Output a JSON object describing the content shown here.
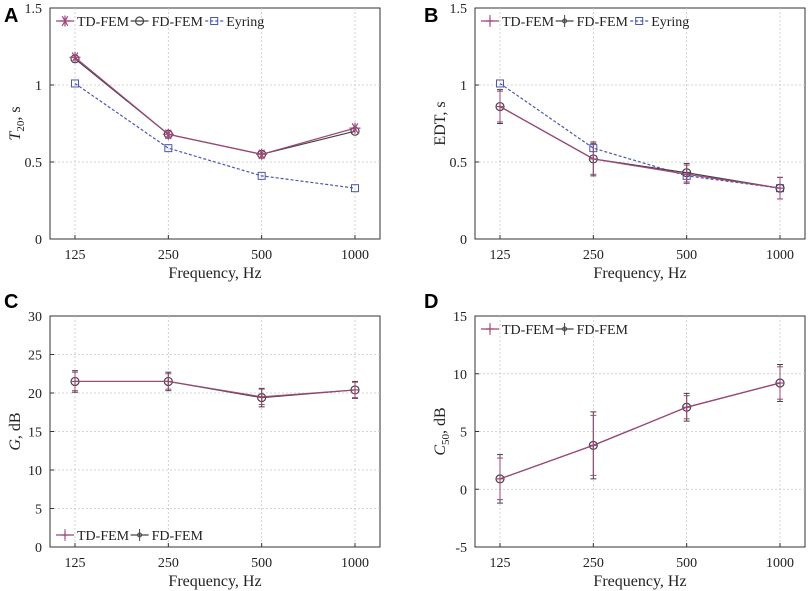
{
  "colors": {
    "td": "#a0457a",
    "fd": "#444444",
    "eyring": "#4a55b8"
  },
  "legend_labels": {
    "td": "TD-FEM",
    "fd": "FD-FEM",
    "eyring": "Eyring"
  },
  "chart_data": [
    {
      "panel": "A",
      "type": "line",
      "categories": [
        "125",
        "250",
        "500",
        "1000"
      ],
      "xlabel": "Frequency, Hz",
      "ylabel": "T20, s",
      "ylabel_main": "T",
      "ylabel_sub": "20",
      "ylabel_rest": ", s",
      "ylim": [
        0,
        1.5
      ],
      "yticks": [
        0,
        0.5,
        1,
        1.5
      ],
      "ytick_labels": [
        "0",
        "0.5",
        "1",
        "1.5"
      ],
      "legend_position": "top",
      "series": [
        {
          "name": "TD-FEM",
          "key": "td",
          "marker": "star",
          "values": [
            1.18,
            0.68,
            0.55,
            0.72
          ]
        },
        {
          "name": "FD-FEM",
          "key": "fd",
          "marker": "circle",
          "values": [
            1.17,
            0.68,
            0.55,
            0.7
          ]
        },
        {
          "name": "Eyring",
          "key": "eyring",
          "marker": "square",
          "dashed": true,
          "values": [
            1.01,
            0.59,
            0.41,
            0.33
          ]
        }
      ]
    },
    {
      "panel": "B",
      "type": "line",
      "categories": [
        "125",
        "250",
        "500",
        "1000"
      ],
      "xlabel": "Frequency, Hz",
      "ylabel": "EDT, s",
      "ylim": [
        0,
        1.5
      ],
      "yticks": [
        0,
        0.5,
        1,
        1.5
      ],
      "ytick_labels": [
        "0",
        "0.5",
        "1",
        "1.5"
      ],
      "legend_position": "top",
      "series": [
        {
          "name": "TD-FEM",
          "key": "td",
          "marker": "plus",
          "values": [
            0.86,
            0.52,
            0.42,
            0.33
          ],
          "errors": [
            0.1,
            0.1,
            0.06,
            0.07
          ]
        },
        {
          "name": "FD-FEM",
          "key": "fd",
          "marker": "circle",
          "values": [
            0.86,
            0.52,
            0.43,
            0.33
          ],
          "errors": [
            0.11,
            0.11,
            0.06,
            0.07
          ]
        },
        {
          "name": "Eyring",
          "key": "eyring",
          "marker": "square",
          "dashed": true,
          "values": [
            1.01,
            0.59,
            0.41,
            0.33
          ]
        }
      ]
    },
    {
      "panel": "C",
      "type": "line",
      "categories": [
        "125",
        "250",
        "500",
        "1000"
      ],
      "xlabel": "Frequency, Hz",
      "ylabel": "G, dB",
      "ylabel_main": "G",
      "ylabel_rest": ", dB",
      "ylim": [
        0,
        30
      ],
      "yticks": [
        0,
        5,
        10,
        15,
        20,
        25,
        30
      ],
      "ytick_labels": [
        "0",
        "5",
        "10",
        "15",
        "20",
        "25",
        "30"
      ],
      "legend_position": "bottom",
      "series": [
        {
          "name": "TD-FEM",
          "key": "td",
          "marker": "plus",
          "values": [
            21.5,
            21.5,
            19.5,
            20.4
          ],
          "errors": [
            1.2,
            1.0,
            1.0,
            1.0
          ]
        },
        {
          "name": "FD-FEM",
          "key": "fd",
          "marker": "circle",
          "values": [
            21.5,
            21.5,
            19.4,
            20.4
          ],
          "errors": [
            1.4,
            1.2,
            1.2,
            1.1
          ]
        }
      ]
    },
    {
      "panel": "D",
      "type": "line",
      "categories": [
        "125",
        "250",
        "500",
        "1000"
      ],
      "xlabel": "Frequency, Hz",
      "ylabel": "C50, dB",
      "ylabel_main": "C",
      "ylabel_sub": "50",
      "ylabel_rest": ", dB",
      "ylim": [
        -5,
        15
      ],
      "yticks": [
        -5,
        0,
        5,
        10,
        15
      ],
      "ytick_labels": [
        "-5",
        "0",
        "5",
        "10",
        "15"
      ],
      "legend_position": "top",
      "series": [
        {
          "name": "TD-FEM",
          "key": "td",
          "marker": "plus",
          "values": [
            0.9,
            3.8,
            7.1,
            9.2
          ],
          "errors": [
            1.8,
            2.6,
            1.0,
            1.4
          ]
        },
        {
          "name": "FD-FEM",
          "key": "fd",
          "marker": "circle",
          "values": [
            0.9,
            3.8,
            7.1,
            9.2
          ],
          "errors": [
            2.1,
            2.9,
            1.2,
            1.6
          ]
        }
      ]
    }
  ]
}
